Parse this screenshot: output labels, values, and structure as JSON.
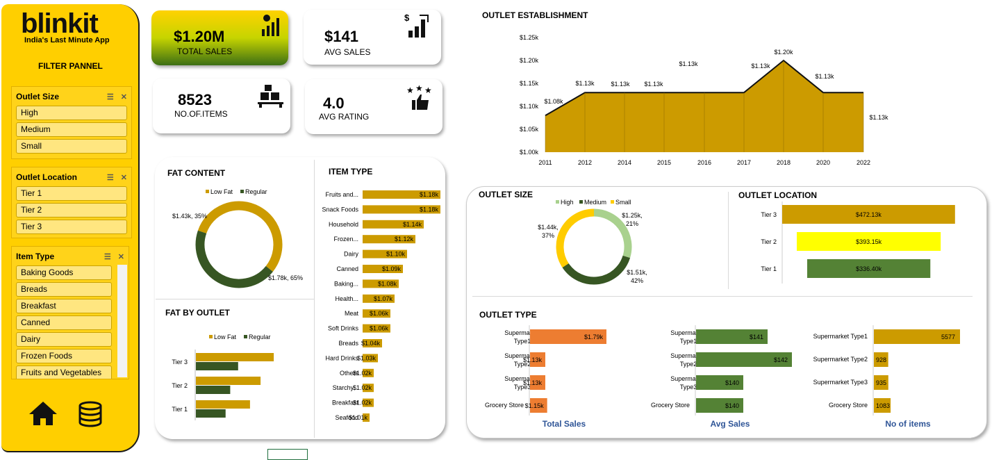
{
  "brand": {
    "logo": "blinkit",
    "tagline": "India's Last Minute App",
    "filter_title": "FILTER PANNEL"
  },
  "filters": {
    "outlet_size": {
      "title": "Outlet Size",
      "items": [
        "High",
        "Medium",
        "Small"
      ]
    },
    "outlet_location": {
      "title": "Outlet Location",
      "items": [
        "Tier 1",
        "Tier 2",
        "Tier 3"
      ]
    },
    "item_type": {
      "title": "Item Type",
      "items": [
        "Baking Goods",
        "Breads",
        "Breakfast",
        "Canned",
        "Dairy",
        "Frozen Foods",
        "Fruits and Vegetables"
      ]
    }
  },
  "kpis": {
    "total_sales": {
      "value": "$1.20M",
      "label": "TOTAL  SALES"
    },
    "avg_sales": {
      "value": "$141",
      "label": "AVG SALES"
    },
    "items": {
      "value": "8523",
      "label": "NO.OF.ITEMS"
    },
    "rating": {
      "value": "4.0",
      "label": "AVG RATING"
    }
  },
  "colors": {
    "gold": "#cc9b00",
    "dark_green": "#375623",
    "green": "#548235",
    "yellow": "#ffff00",
    "orange": "#ed7d31",
    "light_green": "#a9d18e",
    "brand_yellow": "#ffcf00"
  },
  "chart_data": [
    {
      "type": "pie",
      "title": "FAT CONTENT",
      "legend": [
        "Low Fat",
        "Regular"
      ],
      "values": [
        1.78,
        1.43
      ],
      "labels": [
        "$1.78k, 65%",
        "$1.43k, 35%"
      ]
    },
    {
      "type": "bar",
      "title": "ITEM TYPE",
      "categories": [
        "Fruits and...",
        "Snack Foods",
        "Household",
        "Frozen...",
        "Dairy",
        "Canned",
        "Baking...",
        "Health...",
        "Meat",
        "Soft Drinks",
        "Breads",
        "Hard Drinks",
        "Others",
        "Starchy...",
        "Breakfast",
        "Seafood"
      ],
      "values": [
        1.18,
        1.18,
        1.14,
        1.12,
        1.1,
        1.09,
        1.08,
        1.07,
        1.06,
        1.06,
        1.04,
        1.03,
        1.02,
        1.02,
        1.02,
        1.01
      ],
      "labels": [
        "$1.18k",
        "$1.18k",
        "$1.14k",
        "$1.12k",
        "$1.10k",
        "$1.09k",
        "$1.08k",
        "$1.07k",
        "$1.06k",
        "$1.06k",
        "$1.04k",
        "$1.03k",
        "$1.02k",
        "$1.02k",
        "$1.02k",
        "$1.01k"
      ]
    },
    {
      "type": "bar",
      "title": "FAT BY OUTLET",
      "legend": [
        "Low Fat",
        "Regular"
      ],
      "categories": [
        "Tier 3",
        "Tier 2",
        "Tier 1"
      ],
      "series": [
        {
          "name": "Low Fat",
          "values": [
            1.18,
            0.98,
            0.82
          ]
        },
        {
          "name": "Regular",
          "values": [
            0.64,
            0.52,
            0.45
          ]
        }
      ]
    },
    {
      "type": "area",
      "title": "OUTLET ESTABLISHMENT",
      "x": [
        "2011",
        "2012",
        "2014",
        "2015",
        "2016",
        "2017",
        "2018",
        "2020",
        "2022"
      ],
      "values": [
        1.08,
        1.13,
        1.13,
        1.13,
        1.13,
        1.13,
        1.2,
        1.13,
        1.13
      ],
      "labels": [
        "$1.08k",
        "$1.13k",
        "$1.13k",
        "$1.13k",
        "$1.13k",
        "$1.13k",
        "$1.20k",
        "$1.13k",
        "$1.13k"
      ],
      "yticks": [
        "$1.00k",
        "$1.05k",
        "$1.10k",
        "$1.15k",
        "$1.20k",
        "$1.25k"
      ],
      "ylim": [
        1.0,
        1.25
      ]
    },
    {
      "type": "pie",
      "title": "OUTLET SIZE",
      "legend": [
        "High",
        "Medium",
        "Small"
      ],
      "values": [
        1.25,
        1.51,
        1.44
      ],
      "labels": [
        "$1.25k, 21%",
        "$1.51k, 42%",
        "$1.44k, 37%"
      ]
    },
    {
      "type": "bar",
      "title": "OUTLET LOCATION",
      "categories": [
        "Tier 3",
        "Tier 2",
        "Tier 1"
      ],
      "values": [
        472.13,
        393.15,
        336.4
      ],
      "labels": [
        "$472.13k",
        "$393.15k",
        "$336.40k"
      ]
    },
    {
      "type": "bar",
      "title": "OUTLET TYPE",
      "subtitle": "Total Sales",
      "categories": [
        "Supermarket Type1",
        "Supermarket Type2",
        "Supermarket Type3",
        "Grocery Store"
      ],
      "values": [
        1.79,
        1.13,
        1.13,
        1.15
      ],
      "labels": [
        "$1.79k",
        "$1.13k",
        "$1.13k",
        "$1.15k"
      ]
    },
    {
      "type": "bar",
      "subtitle": "Avg Sales",
      "categories": [
        "Supermarket Type1",
        "Supermarket Type2",
        "Supermarket Type3",
        "Grocery Store"
      ],
      "values": [
        141,
        142,
        140,
        140
      ],
      "labels": [
        "$141",
        "$142",
        "$140",
        "$140"
      ]
    },
    {
      "type": "bar",
      "subtitle": "No of items",
      "categories": [
        "Supermarket Type1",
        "Supermarket Type2",
        "Supermarket Type3",
        "Grocery Store"
      ],
      "values": [
        5577,
        928,
        935,
        1083
      ],
      "labels": [
        "5577",
        "928",
        "935",
        "1083"
      ]
    }
  ]
}
